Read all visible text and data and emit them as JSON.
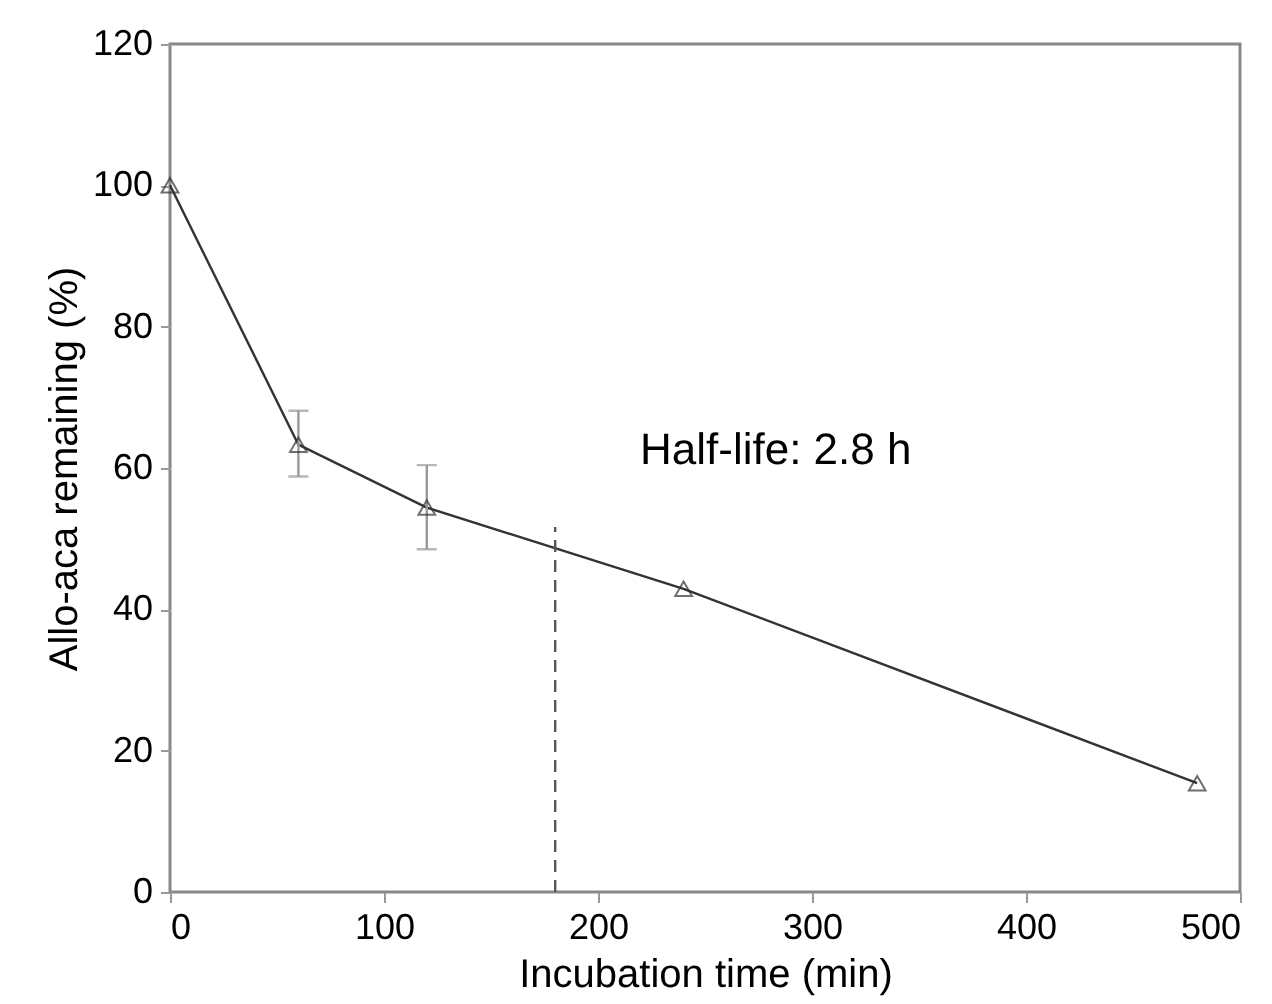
{
  "chart_data": {
    "type": "line",
    "xlabel": "Incubation time (min)",
    "ylabel": "Allo-aca remaining (%)",
    "x": [
      0,
      60,
      120,
      240,
      480
    ],
    "series": [
      {
        "color": "#333333",
        "values": [
          100,
          63.3,
          54.4,
          42.9,
          15.4
        ],
        "errors": [
          null,
          [
            58.8,
            68.1
          ],
          [
            48.5,
            60.4
          ],
          null,
          null
        ]
      }
    ],
    "xlim": [
      0,
      500
    ],
    "xticks": [
      0,
      100,
      200,
      300,
      400,
      500
    ],
    "ylim": [
      0,
      120
    ],
    "yticks": [
      0,
      20,
      40,
      60,
      80,
      100,
      120
    ],
    "ref_lines": [
      {
        "axis": "x",
        "value": 180,
        "color": "#555555",
        "line_style": "dashed"
      }
    ],
    "annotations": [
      "Half-life: 2.8 h"
    ],
    "marker": "triangle",
    "line_style": "solid",
    "grid": false
  }
}
